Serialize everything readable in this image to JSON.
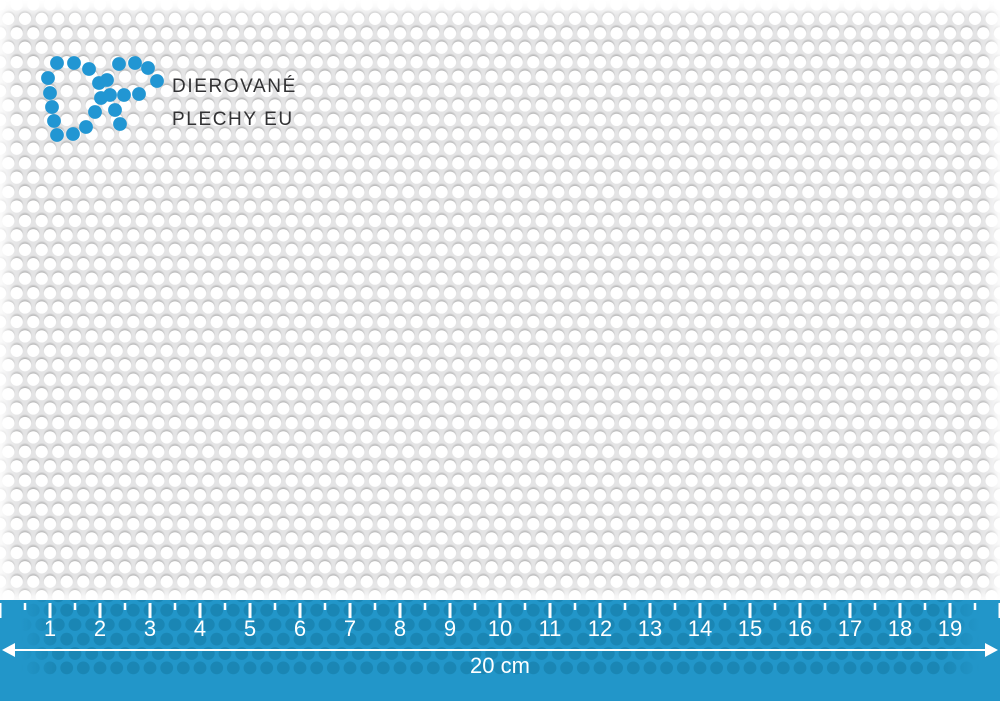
{
  "logo": {
    "line1": "DIEROVANÉ",
    "line2": "PLECHY EU",
    "dot_color": "#2196d3",
    "text_color": "#323234"
  },
  "sheet": {
    "metal_color": "#e4e4e5",
    "hole_color": "#ffffff",
    "hole_shadow_color": "#8f8f8f"
  },
  "ruler": {
    "numbers": [
      1,
      2,
      3,
      4,
      5,
      6,
      7,
      8,
      9,
      10,
      11,
      12,
      13,
      14,
      15,
      16,
      17,
      18,
      19
    ],
    "total_label": "20 cm",
    "unit": "cm",
    "band_color": "#2296c9",
    "dot_color": "#1a86b4",
    "tick_color": "#ffffff",
    "text_color": "#ffffff"
  }
}
